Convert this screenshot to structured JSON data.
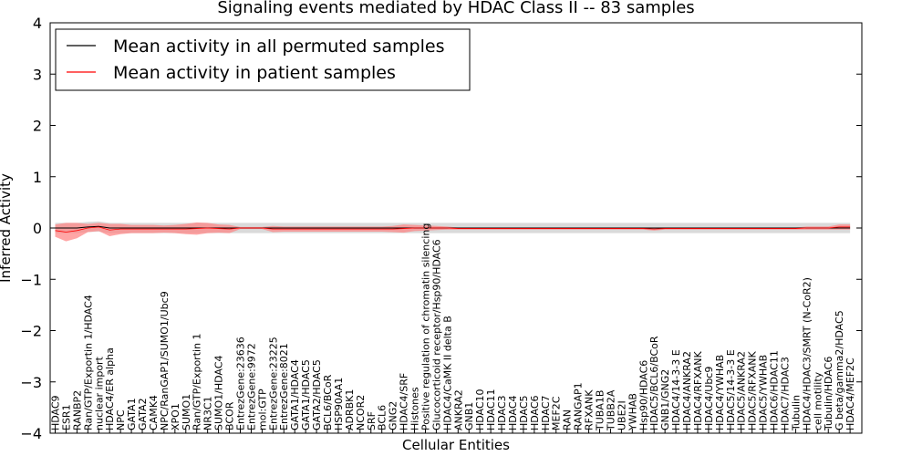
{
  "chart_data": {
    "type": "line",
    "title": "Signaling events mediated by HDAC Class II -- 83 samples",
    "xlabel": "Cellular Entities",
    "ylabel": "Inferred Activity",
    "ylim": [
      -4,
      4
    ],
    "yticks": [
      4,
      3,
      2,
      1,
      0,
      -1,
      -2,
      -3,
      -4
    ],
    "ytick_labels": [
      "4",
      "3",
      "2",
      "1",
      "0",
      "−1",
      "−2",
      "−3",
      "−4"
    ],
    "grid": false,
    "legend_position": "top-left",
    "categories": [
      "HDAC9",
      "ESR1",
      "RANBP2",
      "Ran/GTP/Exportin 1/HDAC4",
      "nuclear import",
      "HDAC4/ER alpha",
      "NPC",
      "GATA1",
      "GATA2",
      "CAMK4",
      "NPC/RanGAP1/SUMO1/Ubc9",
      "XPO1",
      "SUMO1",
      "Ran/GTP/Exportin 1",
      "NR3C1",
      "SUMO1/HDAC4",
      "BCOR",
      "EntrezGene:23636",
      "EntrezGene:9972",
      "mol:GTP",
      "EntrezGene:23225",
      "EntrezGene:8021",
      "GATA1/HDAC4",
      "GATA1/HDAC5",
      "GATA2/HDAC5",
      "BCL6/BCoR",
      "HSP90AA1",
      "ADRBK1",
      "NCOR2",
      "SRF",
      "BCL6",
      "GNG2",
      "HDAC4/SRF",
      "Histones",
      "Positive regulation of chromatin silencing",
      "Glucocorticoid receptor/Hsp90/HDAC6",
      "HDAC4/CaMK II delta B",
      "ANKRA2",
      "GNB1",
      "HDAC10",
      "HDAC11",
      "HDAC3",
      "HDAC4",
      "HDAC5",
      "HDAC6",
      "HDAC7",
      "MEF2C",
      "RAN",
      "RANGAP1",
      "RFXANK",
      "TUBA1B",
      "TUBB2A",
      "UBE2I",
      "YWHAB",
      "Hsp90/HDAC6",
      "HDAC5/BCL6/BCoR",
      "GNB1/GNG2",
      "HDAC4/14-3-3 E",
      "HDAC4/ANKRA2",
      "HDAC4/RFXANK",
      "HDAC4/Ubc9",
      "HDAC4/YWHAB",
      "HDAC5/14-3-3 E",
      "HDAC5/ANKRA2",
      "HDAC5/RFXANK",
      "HDAC5/YWHAB",
      "HDAC6/HDAC11",
      "HDAC7/HDAC3",
      "Tubulin",
      "HDAC4/HDAC3/SMRT (N-CoR2)",
      "cell motility",
      "Tubulin/HDAC6",
      "G beta/gamma2/HDAC5",
      "HDAC4/MEF2C"
    ],
    "series": [
      {
        "name": "Mean activity in all permuted samples",
        "color": "#000000",
        "values": [
          0.0,
          0.0,
          0.0,
          0.02,
          0.03,
          0.0,
          0.0,
          0.0,
          0.0,
          0.0,
          0.0,
          0.0,
          0.0,
          0.0,
          0.0,
          0.0,
          0.0,
          0.0,
          0.0,
          0.0,
          0.0,
          0.0,
          0.0,
          0.0,
          0.0,
          0.0,
          0.0,
          0.0,
          0.0,
          0.0,
          0.0,
          0.0,
          0.0,
          0.0,
          0.0,
          0.0,
          0.0,
          0.0,
          0.0,
          0.0,
          0.0,
          0.0,
          0.0,
          0.0,
          0.0,
          0.0,
          0.0,
          0.0,
          0.0,
          0.0,
          0.0,
          0.0,
          0.0,
          0.0,
          0.0,
          0.0,
          0.0,
          0.0,
          0.0,
          0.0,
          0.0,
          0.0,
          0.0,
          0.0,
          0.0,
          0.0,
          0.0,
          0.0,
          0.0,
          0.0,
          0.0,
          0.0,
          0.0,
          0.0
        ],
        "band": 0.1,
        "band_color": "#bbbbbb"
      },
      {
        "name": "Mean activity in patient samples",
        "color": "#ff0000",
        "values": [
          -0.05,
          -0.08,
          -0.05,
          0.0,
          0.02,
          -0.04,
          -0.02,
          -0.02,
          -0.02,
          -0.02,
          -0.02,
          -0.02,
          -0.02,
          -0.01,
          0.0,
          -0.01,
          -0.02,
          0.0,
          0.0,
          0.0,
          -0.02,
          -0.02,
          -0.02,
          -0.02,
          -0.02,
          -0.02,
          -0.02,
          -0.02,
          -0.02,
          -0.02,
          -0.02,
          -0.02,
          -0.01,
          0.0,
          0.0,
          0.0,
          0.0,
          -0.01,
          -0.01,
          -0.01,
          -0.01,
          -0.01,
          -0.01,
          -0.01,
          -0.01,
          -0.01,
          -0.01,
          -0.01,
          -0.01,
          -0.01,
          -0.01,
          -0.01,
          -0.01,
          -0.01,
          -0.01,
          -0.02,
          -0.01,
          -0.01,
          -0.01,
          -0.01,
          -0.01,
          -0.01,
          -0.01,
          -0.01,
          -0.01,
          -0.01,
          -0.01,
          -0.01,
          -0.01,
          0.0,
          0.0,
          0.0,
          0.02,
          0.02
        ],
        "band": [
          0.12,
          0.18,
          0.15,
          0.08,
          0.08,
          0.12,
          0.1,
          0.08,
          0.08,
          0.08,
          0.07,
          0.08,
          0.1,
          0.12,
          0.1,
          0.08,
          0.08,
          0.02,
          0.02,
          0.02,
          0.06,
          0.05,
          0.05,
          0.05,
          0.05,
          0.05,
          0.05,
          0.05,
          0.05,
          0.05,
          0.05,
          0.06,
          0.08,
          0.06,
          0.05,
          0.04,
          0.03,
          0.02,
          0.02,
          0.02,
          0.02,
          0.02,
          0.02,
          0.02,
          0.02,
          0.02,
          0.02,
          0.02,
          0.02,
          0.02,
          0.02,
          0.02,
          0.02,
          0.02,
          0.02,
          0.03,
          0.02,
          0.02,
          0.02,
          0.02,
          0.02,
          0.02,
          0.02,
          0.02,
          0.02,
          0.02,
          0.02,
          0.02,
          0.02,
          0.03,
          0.03,
          0.03,
          0.05,
          0.05
        ],
        "band_color": "#ff8080"
      }
    ]
  }
}
